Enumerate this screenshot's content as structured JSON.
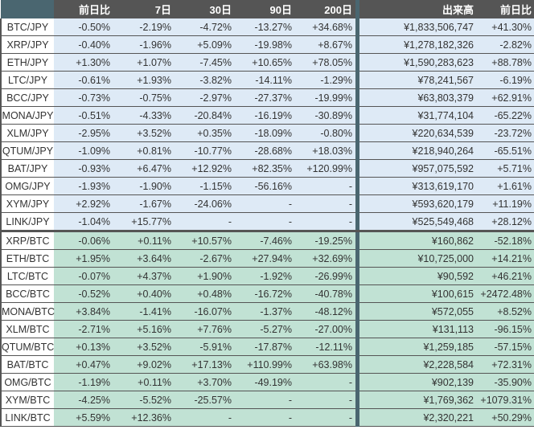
{
  "headers": {
    "pair": "",
    "d1": "前日比",
    "d7": "7日",
    "d30": "30日",
    "d90": "90日",
    "d200": "200日",
    "volume": "出来高",
    "volume_change": "前日比"
  },
  "colors": {
    "header_bg": "#555555",
    "corner_bg": "#4a6670",
    "jpy_row_bg": "#deeaf6",
    "btc_row_bg": "#c1e2d4"
  },
  "rows": [
    {
      "pair": "BTC/JPY",
      "d1": "-0.50%",
      "d7": "-2.19%",
      "d30": "-4.72%",
      "d90": "-13.27%",
      "d200": "+34.68%",
      "volume": "¥1,833,506,747",
      "volume_change": "+41.30%"
    },
    {
      "pair": "XRP/JPY",
      "d1": "-0.40%",
      "d7": "-1.96%",
      "d30": "+5.09%",
      "d90": "-19.98%",
      "d200": "+8.67%",
      "volume": "¥1,278,182,326",
      "volume_change": "-2.82%"
    },
    {
      "pair": "ETH/JPY",
      "d1": "+1.30%",
      "d7": "+1.07%",
      "d30": "-7.45%",
      "d90": "+10.65%",
      "d200": "+78.05%",
      "volume": "¥1,590,283,623",
      "volume_change": "+88.78%"
    },
    {
      "pair": "LTC/JPY",
      "d1": "-0.61%",
      "d7": "+1.93%",
      "d30": "-3.82%",
      "d90": "-14.11%",
      "d200": "-1.29%",
      "volume": "¥78,241,567",
      "volume_change": "-6.19%"
    },
    {
      "pair": "BCC/JPY",
      "d1": "-0.73%",
      "d7": "-0.75%",
      "d30": "-2.97%",
      "d90": "-27.37%",
      "d200": "-19.99%",
      "volume": "¥63,803,379",
      "volume_change": "+62.91%"
    },
    {
      "pair": "MONA/JPY",
      "d1": "-0.51%",
      "d7": "-4.33%",
      "d30": "-20.84%",
      "d90": "-16.19%",
      "d200": "-30.89%",
      "volume": "¥31,774,104",
      "volume_change": "-65.22%"
    },
    {
      "pair": "XLM/JPY",
      "d1": "-2.95%",
      "d7": "+3.52%",
      "d30": "+0.35%",
      "d90": "-18.09%",
      "d200": "-0.80%",
      "volume": "¥220,634,539",
      "volume_change": "-23.72%"
    },
    {
      "pair": "QTUM/JPY",
      "d1": "-1.09%",
      "d7": "+0.81%",
      "d30": "-10.77%",
      "d90": "-28.68%",
      "d200": "+18.03%",
      "volume": "¥218,940,264",
      "volume_change": "-65.51%"
    },
    {
      "pair": "BAT/JPY",
      "d1": "-0.93%",
      "d7": "+6.47%",
      "d30": "+12.92%",
      "d90": "+82.35%",
      "d200": "+120.99%",
      "volume": "¥957,075,592",
      "volume_change": "+5.71%"
    },
    {
      "pair": "OMG/JPY",
      "d1": "-1.93%",
      "d7": "-1.90%",
      "d30": "-1.15%",
      "d90": "-56.16%",
      "d200": "-",
      "volume": "¥313,619,170",
      "volume_change": "+1.61%"
    },
    {
      "pair": "XYM/JPY",
      "d1": "+2.92%",
      "d7": "-1.67%",
      "d30": "-24.06%",
      "d90": "-",
      "d200": "-",
      "volume": "¥593,620,179",
      "volume_change": "+11.19%"
    },
    {
      "pair": "LINK/JPY",
      "d1": "-1.04%",
      "d7": "+15.77%",
      "d30": "-",
      "d90": "-",
      "d200": "-",
      "volume": "¥525,549,468",
      "volume_change": "+28.12%"
    },
    {
      "pair": "XRP/BTC",
      "d1": "-0.06%",
      "d7": "+0.11%",
      "d30": "+10.57%",
      "d90": "-7.46%",
      "d200": "-19.25%",
      "volume": "¥160,862",
      "volume_change": "-52.18%"
    },
    {
      "pair": "ETH/BTC",
      "d1": "+1.95%",
      "d7": "+3.64%",
      "d30": "-2.67%",
      "d90": "+27.94%",
      "d200": "+32.69%",
      "volume": "¥10,725,000",
      "volume_change": "+14.21%"
    },
    {
      "pair": "LTC/BTC",
      "d1": "-0.07%",
      "d7": "+4.37%",
      "d30": "+1.90%",
      "d90": "-1.92%",
      "d200": "-26.99%",
      "volume": "¥90,592",
      "volume_change": "+46.21%"
    },
    {
      "pair": "BCC/BTC",
      "d1": "-0.52%",
      "d7": "+0.40%",
      "d30": "+0.48%",
      "d90": "-16.72%",
      "d200": "-40.78%",
      "volume": "¥100,615",
      "volume_change": "+2472.48%"
    },
    {
      "pair": "MONA/BTC",
      "d1": "+3.84%",
      "d7": "-1.41%",
      "d30": "-16.07%",
      "d90": "-1.37%",
      "d200": "-48.12%",
      "volume": "¥572,055",
      "volume_change": "+8.52%"
    },
    {
      "pair": "XLM/BTC",
      "d1": "-2.71%",
      "d7": "+5.16%",
      "d30": "+7.76%",
      "d90": "-5.27%",
      "d200": "-27.00%",
      "volume": "¥131,113",
      "volume_change": "-96.15%"
    },
    {
      "pair": "QTUM/BTC",
      "d1": "+0.13%",
      "d7": "+3.52%",
      "d30": "-5.91%",
      "d90": "-17.87%",
      "d200": "-12.11%",
      "volume": "¥1,259,185",
      "volume_change": "-57.15%"
    },
    {
      "pair": "BAT/BTC",
      "d1": "+0.47%",
      "d7": "+9.02%",
      "d30": "+17.13%",
      "d90": "+110.99%",
      "d200": "+63.98%",
      "volume": "¥2,228,584",
      "volume_change": "+72.31%"
    },
    {
      "pair": "OMG/BTC",
      "d1": "-1.19%",
      "d7": "+0.11%",
      "d30": "+3.70%",
      "d90": "-49.19%",
      "d200": "-",
      "volume": "¥902,139",
      "volume_change": "-35.90%"
    },
    {
      "pair": "XYM/BTC",
      "d1": "-4.25%",
      "d7": "-5.52%",
      "d30": "-25.57%",
      "d90": "-",
      "d200": "-",
      "volume": "¥1,769,362",
      "volume_change": "+1079.31%"
    },
    {
      "pair": "LINK/BTC",
      "d1": "+5.59%",
      "d7": "+12.36%",
      "d30": "-",
      "d90": "-",
      "d200": "-",
      "volume": "¥2,320,221",
      "volume_change": "+50.29%"
    }
  ]
}
